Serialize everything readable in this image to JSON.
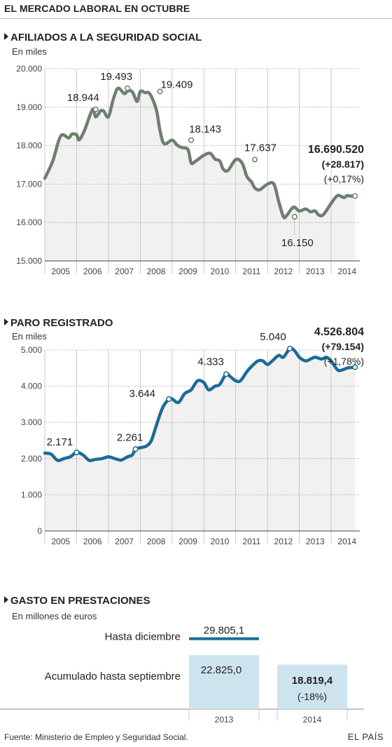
{
  "title": "EL MERCADO LABORAL EN OCTUBRE",
  "source": "Fuente: Ministerio de Empleo y Seguridad Social.",
  "brand": "EL PAÍS",
  "colors": {
    "afiliados": "#6e7f6e",
    "paro": "#1d6a98",
    "gasto_line": "#1d6a98",
    "gasto_bar": "#cde3ee",
    "plot_bg": "#f1f1f1"
  },
  "chart_data": [
    {
      "type": "line",
      "title": "AFILIADOS A LA SEGURIDAD SOCIAL",
      "subtitle": "En miles",
      "ylim": [
        15000,
        20000
      ],
      "yticks": [
        "15.000",
        "16.000",
        "17.000",
        "18.000",
        "19.000",
        "20.000"
      ],
      "ytick_values": [
        15000,
        16000,
        17000,
        18000,
        19000,
        20000
      ],
      "xlim": [
        2005.0,
        2014.9
      ],
      "xticks": [
        "2005",
        "2006",
        "2007",
        "2008",
        "2009",
        "2010",
        "2011",
        "2012",
        "2013",
        "2014"
      ],
      "grid": true,
      "series": [
        {
          "x": [
            2005.0,
            2005.25,
            2005.5,
            2005.75,
            2005.85,
            2006.0,
            2006.08,
            2006.25,
            2006.5,
            2006.6,
            2006.75,
            2006.85,
            2007.0,
            2007.15,
            2007.3,
            2007.5,
            2007.6,
            2007.75,
            2007.9,
            2008.0,
            2008.15,
            2008.3,
            2008.5,
            2008.62,
            2008.75,
            2009.0,
            2009.15,
            2009.3,
            2009.5,
            2009.6,
            2009.75,
            2010.0,
            2010.2,
            2010.35,
            2010.5,
            2010.6,
            2010.75,
            2011.0,
            2011.2,
            2011.35,
            2011.5,
            2011.6,
            2011.75,
            2012.0,
            2012.2,
            2012.35,
            2012.5,
            2012.6,
            2012.75,
            2012.85,
            2013.0,
            2013.2,
            2013.35,
            2013.5,
            2013.6,
            2013.75,
            2014.0,
            2014.2,
            2014.4,
            2014.5,
            2014.6,
            2014.75
          ],
          "y": [
            17150,
            17600,
            18250,
            18200,
            18300,
            18280,
            18150,
            18400,
            18944,
            18750,
            18900,
            18900,
            18750,
            19200,
            19493,
            19350,
            19420,
            19400,
            19150,
            19409,
            19380,
            19350,
            18950,
            18400,
            18050,
            18143,
            18020,
            17950,
            17900,
            17550,
            17600,
            17750,
            17800,
            17650,
            17600,
            17400,
            17350,
            17637,
            17550,
            17200,
            17050,
            16900,
            16850,
            17000,
            17000,
            16550,
            16150,
            16180,
            16350,
            16400,
            16300,
            16350,
            16280,
            16300,
            16200,
            16200,
            16500,
            16700,
            16650,
            16700,
            16690,
            16690
          ],
          "labels": [
            {
              "x": 2006.6,
              "y": 18944,
              "text": "18.944"
            },
            {
              "x": 2007.6,
              "y": 19493,
              "text": "19.493"
            },
            {
              "x": 2008.62,
              "y": 19409,
              "text": "19.409"
            },
            {
              "x": 2009.6,
              "y": 18143,
              "text": "18.143"
            },
            {
              "x": 2011.6,
              "y": 17637,
              "text": "17.637"
            },
            {
              "x": 2012.85,
              "y": 16150,
              "text": "16.150"
            },
            {
              "x": 2014.75,
              "y": 16690,
              "text": ""
            }
          ]
        }
      ],
      "callout": {
        "value": "16.690.520",
        "change": "(+28.817)",
        "pct": "(+0,17%)"
      }
    },
    {
      "type": "line",
      "title": "PARO REGISTRADO",
      "subtitle": "En miles",
      "ylim": [
        0,
        5000
      ],
      "yticks": [
        "0",
        "1.000",
        "2.000",
        "3.000",
        "4.000",
        "5.000"
      ],
      "ytick_values": [
        0,
        1000,
        2000,
        3000,
        4000,
        5000
      ],
      "xlim": [
        2005.0,
        2014.9
      ],
      "xticks": [
        "2005",
        "2006",
        "2007",
        "2008",
        "2009",
        "2010",
        "2011",
        "2012",
        "2013",
        "2014"
      ],
      "grid": true,
      "series": [
        {
          "x": [
            2005.0,
            2005.2,
            2005.4,
            2005.6,
            2005.8,
            2006.0,
            2006.2,
            2006.4,
            2006.6,
            2006.8,
            2007.0,
            2007.2,
            2007.4,
            2007.6,
            2007.75,
            2007.85,
            2008.0,
            2008.2,
            2008.35,
            2008.5,
            2008.7,
            2008.9,
            2009.0,
            2009.2,
            2009.4,
            2009.6,
            2009.8,
            2010.0,
            2010.15,
            2010.35,
            2010.5,
            2010.7,
            2010.85,
            2011.0,
            2011.15,
            2011.35,
            2011.5,
            2011.7,
            2011.85,
            2012.0,
            2012.15,
            2012.35,
            2012.5,
            2012.7,
            2012.85,
            2013.0,
            2013.2,
            2013.35,
            2013.5,
            2013.7,
            2013.85,
            2014.0,
            2014.2,
            2014.35,
            2014.5,
            2014.75
          ],
          "y": [
            2150,
            2120,
            1950,
            2000,
            2050,
            2171,
            2100,
            1950,
            1980,
            2000,
            2050,
            2000,
            1960,
            2050,
            2100,
            2261,
            2300,
            2350,
            2500,
            2900,
            3400,
            3644,
            3650,
            3550,
            3800,
            3900,
            4150,
            4100,
            3900,
            4000,
            4050,
            4333,
            4250,
            4150,
            4150,
            4400,
            4550,
            4700,
            4700,
            4600,
            4700,
            4850,
            4800,
            5040,
            4980,
            4800,
            4700,
            4750,
            4800,
            4750,
            4800,
            4700,
            4450,
            4450,
            4500,
            4527
          ],
          "labels": [
            {
              "x": 2006.0,
              "y": 2171,
              "text": "2.171"
            },
            {
              "x": 2007.85,
              "y": 2261,
              "text": "2.261"
            },
            {
              "x": 2008.9,
              "y": 3644,
              "text": "3.644"
            },
            {
              "x": 2010.7,
              "y": 4333,
              "text": "4.333"
            },
            {
              "x": 2012.7,
              "y": 5040,
              "text": "5.040"
            },
            {
              "x": 2014.75,
              "y": 4527,
              "text": ""
            }
          ]
        }
      ],
      "callout": {
        "value": "4.526.804",
        "change": "(+79.154)",
        "pct": "(+1,78%)"
      }
    },
    {
      "type": "bar",
      "title": "GASTO EN PRESTACIONES",
      "subtitle": "En millones de euros",
      "categories": [
        "2013",
        "2014"
      ],
      "series": [
        {
          "name": "Acumulado hasta septiembre",
          "values": [
            22825.0,
            18819.4
          ],
          "labels": [
            "22.825,0",
            "18.819,4"
          ]
        },
        {
          "name": "Hasta diciembre",
          "values": [
            29805.1,
            null
          ],
          "labels": [
            "29.805,1",
            ""
          ]
        }
      ],
      "change_2014": "(-18%)"
    }
  ]
}
